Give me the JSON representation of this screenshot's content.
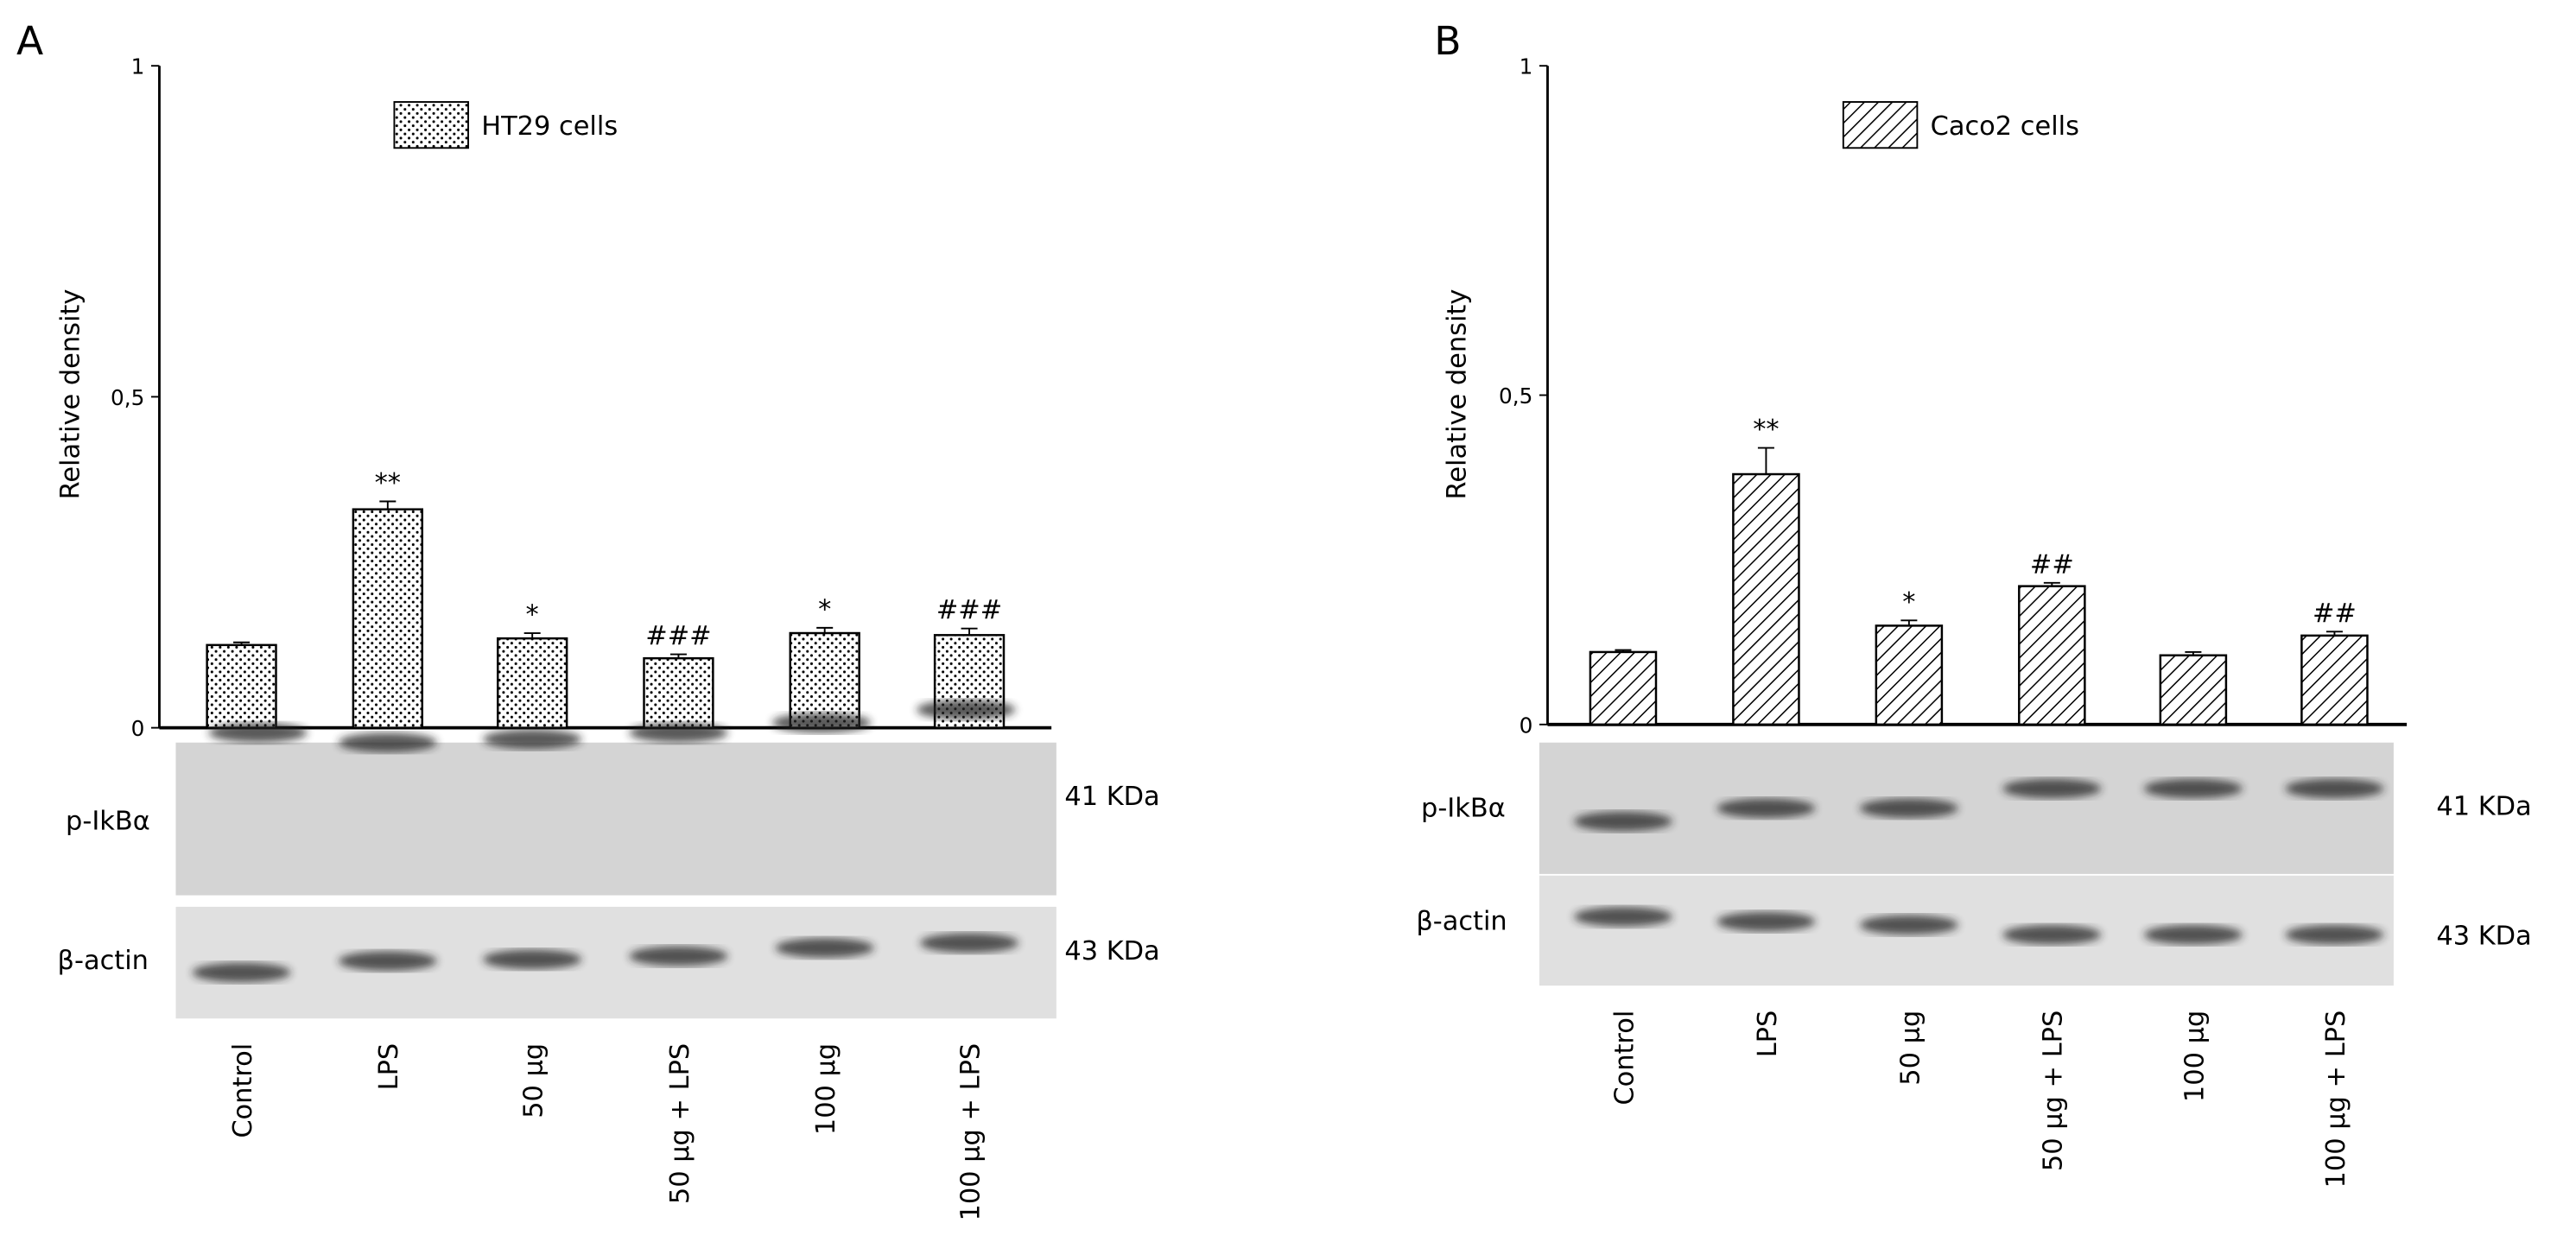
{
  "chart_data": [
    {
      "type": "bar",
      "panel_label": "A",
      "ylabel": "Relative density",
      "categories": [
        "Control",
        "LPS",
        "50 µg",
        "50 µg + LPS",
        "100 µg",
        "100 µg + LPS"
      ],
      "series": [
        {
          "name": "HT29 cells",
          "color": "#000000",
          "pattern": "dots",
          "values": [
            0.125,
            0.33,
            0.135,
            0.105,
            0.143,
            0.14
          ],
          "errors": [
            0.004,
            0.012,
            0.008,
            0.006,
            0.008,
            0.01
          ],
          "annotations": [
            null,
            "**",
            "*",
            "###",
            "*",
            "###"
          ]
        }
      ],
      "ylim": [
        0,
        1
      ],
      "yticks": [
        0,
        {
          "value": 0.5,
          "label": "0,5"
        },
        1
      ],
      "blots": [
        {
          "label": "p-IkBα",
          "size": "41 KDa"
        },
        {
          "label": "β-actin",
          "size": "43 KDa"
        }
      ]
    },
    {
      "type": "bar",
      "panel_label": "B",
      "ylabel": "Relative density",
      "categories": [
        "Control",
        "LPS",
        "50 µg",
        "50 µg + LPS",
        "100 µg",
        "100 µg + LPS"
      ],
      "series": [
        {
          "name": "Caco2 cells",
          "color": "#000000",
          "pattern": "hatch",
          "values": [
            0.11,
            0.38,
            0.15,
            0.21,
            0.105,
            0.135
          ],
          "errors": [
            0.003,
            0.04,
            0.008,
            0.005,
            0.005,
            0.006
          ],
          "annotations": [
            null,
            "**",
            "*",
            "##",
            null,
            "##"
          ]
        }
      ],
      "ylim": [
        0,
        1
      ],
      "yticks": [
        0,
        {
          "value": 0.5,
          "label": "0,5"
        },
        1
      ],
      "blots": [
        {
          "label": "p-IkBα",
          "size": "41 KDa"
        },
        {
          "label": "β-actin",
          "size": "43 KDa"
        }
      ]
    }
  ]
}
